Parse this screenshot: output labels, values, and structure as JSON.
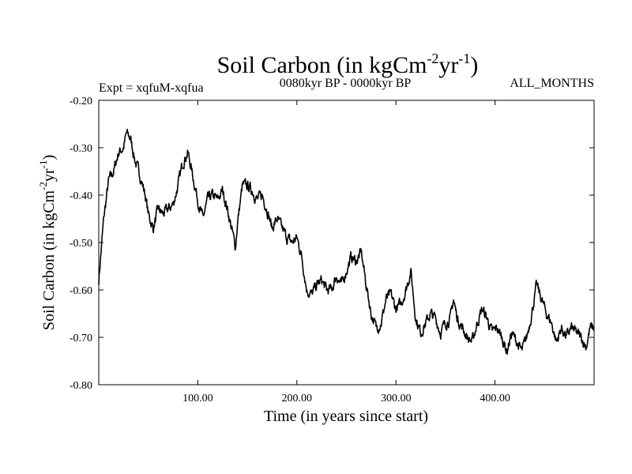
{
  "chart_data": {
    "type": "line",
    "title": "Soil Carbon (in kgCm",
    "title_exp1": "-2",
    "title_mid": "yr",
    "title_exp2": "-1",
    "title_end": ")",
    "subtitle_left": "Expt = xqfuM-xqfua",
    "subtitle_center": "0080kyr BP - 0000kyr BP",
    "subtitle_right": "ALL_MONTHS",
    "xlabel": "Time (in years since start)",
    "ylabel": "Soil Carbon (in kgCm",
    "ylabel_exp1": "-2",
    "ylabel_mid": "yr",
    "ylabel_exp2": "-1",
    "ylabel_end": ")",
    "xlim": [
      0,
      500
    ],
    "ylim": [
      -0.8,
      -0.2
    ],
    "xticks": [
      100,
      200,
      300,
      400
    ],
    "xtick_labels": [
      "100.00",
      "200.00",
      "300.00",
      "400.00"
    ],
    "yticks": [
      -0.2,
      -0.3,
      -0.4,
      -0.5,
      -0.6,
      -0.7,
      -0.8
    ],
    "ytick_labels": [
      "-0.20",
      "-0.30",
      "-0.40",
      "-0.50",
      "-0.60",
      "-0.70",
      "-0.80"
    ],
    "series": [
      {
        "name": "Soil Carbon",
        "x": [
          0,
          5,
          10,
          15,
          20,
          25,
          28,
          32,
          37,
          42,
          47,
          50,
          55,
          60,
          65,
          70,
          75,
          80,
          85,
          90,
          95,
          100,
          105,
          110,
          115,
          120,
          125,
          130,
          135,
          138,
          140,
          145,
          150,
          155,
          160,
          165,
          170,
          175,
          180,
          185,
          190,
          195,
          200,
          205,
          210,
          215,
          220,
          225,
          230,
          235,
          240,
          245,
          250,
          255,
          260,
          265,
          270,
          275,
          280,
          285,
          290,
          295,
          300,
          305,
          310,
          315,
          320,
          325,
          330,
          335,
          340,
          345,
          350,
          355,
          358,
          362,
          367,
          372,
          377,
          382,
          387,
          392,
          397,
          402,
          407,
          412,
          417,
          422,
          427,
          432,
          437,
          442,
          447,
          452,
          457,
          462,
          467,
          472,
          477,
          482,
          487,
          492,
          496,
          500
        ],
        "y": [
          -0.58,
          -0.45,
          -0.37,
          -0.35,
          -0.31,
          -0.3,
          -0.27,
          -0.28,
          -0.33,
          -0.36,
          -0.4,
          -0.44,
          -0.47,
          -0.43,
          -0.44,
          -0.43,
          -0.42,
          -0.38,
          -0.33,
          -0.31,
          -0.36,
          -0.41,
          -0.45,
          -0.41,
          -0.4,
          -0.41,
          -0.39,
          -0.43,
          -0.48,
          -0.51,
          -0.46,
          -0.38,
          -0.38,
          -0.39,
          -0.41,
          -0.4,
          -0.43,
          -0.47,
          -0.45,
          -0.47,
          -0.49,
          -0.5,
          -0.49,
          -0.53,
          -0.6,
          -0.61,
          -0.59,
          -0.58,
          -0.6,
          -0.6,
          -0.57,
          -0.59,
          -0.56,
          -0.53,
          -0.54,
          -0.52,
          -0.59,
          -0.65,
          -0.68,
          -0.67,
          -0.62,
          -0.61,
          -0.64,
          -0.63,
          -0.6,
          -0.56,
          -0.66,
          -0.69,
          -0.67,
          -0.65,
          -0.66,
          -0.69,
          -0.67,
          -0.66,
          -0.62,
          -0.66,
          -0.68,
          -0.7,
          -0.71,
          -0.67,
          -0.64,
          -0.66,
          -0.69,
          -0.68,
          -0.7,
          -0.73,
          -0.69,
          -0.71,
          -0.73,
          -0.7,
          -0.65,
          -0.59,
          -0.62,
          -0.65,
          -0.67,
          -0.71,
          -0.68,
          -0.7,
          -0.68,
          -0.69,
          -0.7,
          -0.72,
          -0.68,
          -0.68
        ]
      }
    ]
  }
}
